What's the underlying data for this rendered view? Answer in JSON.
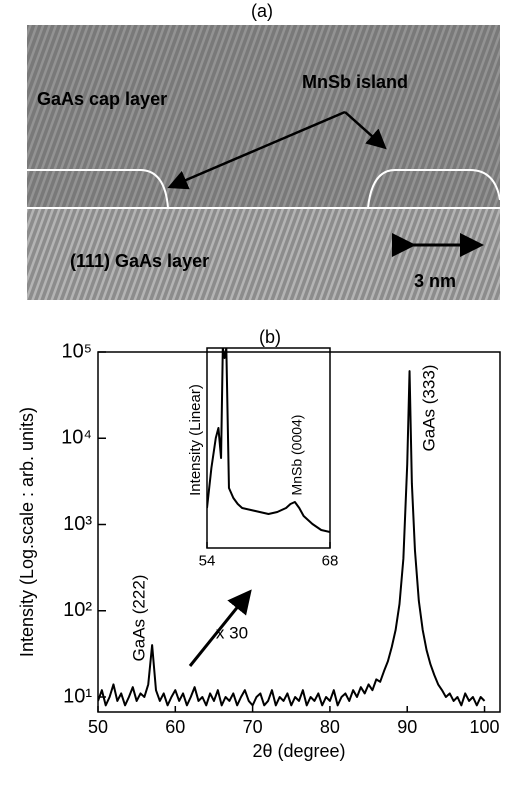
{
  "figure_a": {
    "title": "(a)",
    "labels": [
      "GaAs cap layer",
      "MnSb island",
      "(111) GaAs layer",
      "3 nm"
    ]
  },
  "chart_data": [
    {
      "type": "line",
      "title": "(b)",
      "xlabel": "2θ (degree)",
      "ylabel": "Intensity (Log.scale : arb. units)",
      "yscale": "log",
      "xlim": [
        50,
        102
      ],
      "ylim": [
        6.7,
        100000
      ],
      "xticks": [
        50,
        60,
        70,
        80,
        90,
        100
      ],
      "yticks": [
        {
          "value": 10,
          "label": "10¹"
        },
        {
          "value": 100,
          "label": "10²"
        },
        {
          "value": 1000,
          "label": "10³"
        },
        {
          "value": 10000,
          "label": "10⁴"
        },
        {
          "value": 100000,
          "label": "10⁵"
        }
      ],
      "annotations": [
        "GaAs (222)",
        "GaAs (333)",
        "x 30"
      ],
      "x": [
        50,
        50.5,
        51,
        51.5,
        52,
        52.5,
        53,
        53.5,
        54,
        54.5,
        55,
        55.5,
        56,
        56.5,
        57,
        57.5,
        58,
        58.5,
        59,
        59.5,
        60,
        60.5,
        61,
        61.5,
        62,
        62.5,
        63,
        63.5,
        64,
        64.5,
        65,
        65.5,
        66,
        66.5,
        67,
        67.5,
        68,
        68.5,
        69,
        69.5,
        70,
        70.5,
        71,
        71.5,
        72,
        72.5,
        73,
        73.5,
        74,
        74.5,
        75,
        75.5,
        76,
        76.5,
        77,
        77.5,
        78,
        78.5,
        79,
        79.5,
        80,
        80.5,
        81,
        81.5,
        82,
        82.5,
        83,
        83.5,
        84,
        84.5,
        85,
        85.5,
        86,
        86.5,
        87,
        87.5,
        88,
        88.5,
        89,
        89.5,
        90,
        90.3,
        90.6,
        91,
        91.5,
        92,
        92.5,
        93,
        93.5,
        94,
        94.5,
        95,
        95.5,
        96,
        96.5,
        97,
        97.5,
        98,
        98.5,
        99,
        99.5,
        100
      ],
      "series": [
        {
          "color": "#000000",
          "values": [
            9,
            12,
            8,
            10,
            14,
            9,
            11,
            8,
            10,
            13,
            9,
            11,
            10,
            14,
            40,
            12,
            9,
            11,
            8,
            10,
            12,
            9,
            11,
            8,
            10,
            13,
            9,
            10,
            8,
            11,
            9,
            12,
            8,
            10,
            9,
            11,
            8,
            10,
            12,
            9,
            8,
            10,
            11,
            8,
            9,
            12,
            8,
            10,
            9,
            11,
            8,
            10,
            9,
            12,
            8,
            10,
            9,
            11,
            8,
            10,
            9,
            12,
            8,
            10,
            11,
            9,
            12,
            10,
            13,
            11,
            14,
            12,
            16,
            15,
            20,
            26,
            38,
            60,
            120,
            400,
            5000,
            60000,
            3000,
            500,
            130,
            60,
            35,
            24,
            18,
            14,
            12,
            10,
            11,
            9,
            10,
            8,
            11,
            9,
            10,
            8,
            10,
            9
          ]
        }
      ]
    },
    {
      "type": "line",
      "ylabel": "Intensity (Linear)",
      "xlim": [
        54,
        68
      ],
      "ylim": [
        0,
        100
      ],
      "xticks": [
        54,
        68
      ],
      "annotations": [
        "MnSb (0004)"
      ],
      "x": [
        54,
        54.5,
        55,
        55.3,
        55.6,
        55.8,
        56,
        56.2,
        56.5,
        57,
        57.5,
        58,
        59,
        60,
        61,
        62,
        63,
        63.5,
        64,
        64.5,
        65,
        66,
        67,
        68
      ],
      "series": [
        {
          "color": "#000000",
          "values": [
            20,
            40,
            55,
            60,
            45,
            100,
            95,
            100,
            30,
            25,
            22,
            20,
            19,
            18,
            17,
            18,
            20,
            22,
            23,
            20,
            16,
            12,
            9,
            8
          ]
        }
      ]
    }
  ]
}
